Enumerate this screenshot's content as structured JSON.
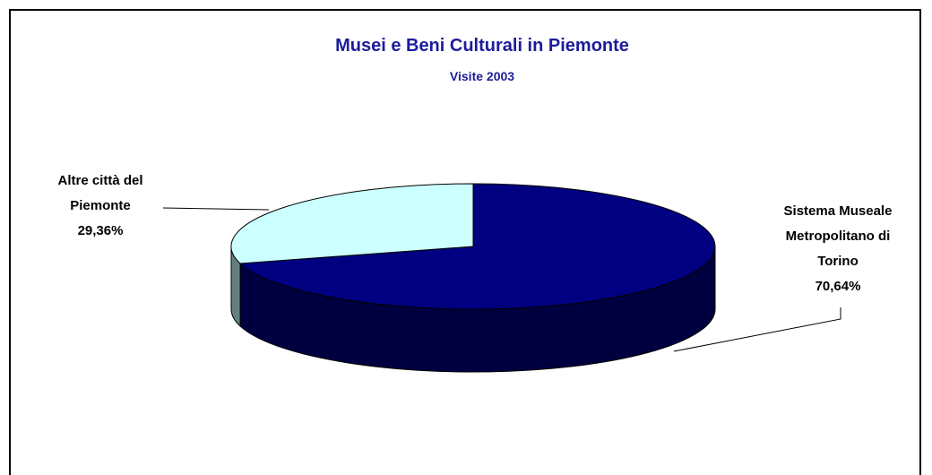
{
  "chart_data": {
    "type": "pie",
    "title": "Musei e Beni Culturali in Piemonte",
    "subtitle": "Visite 2003",
    "categories": [
      "Sistema Museale Metropolitano di Torino",
      "Altre città del Piemonte"
    ],
    "values": [
      70.64,
      29.36
    ],
    "value_labels": [
      "70,64%",
      "29,36%"
    ],
    "colors": [
      "#000080",
      "#ccffff"
    ]
  }
}
